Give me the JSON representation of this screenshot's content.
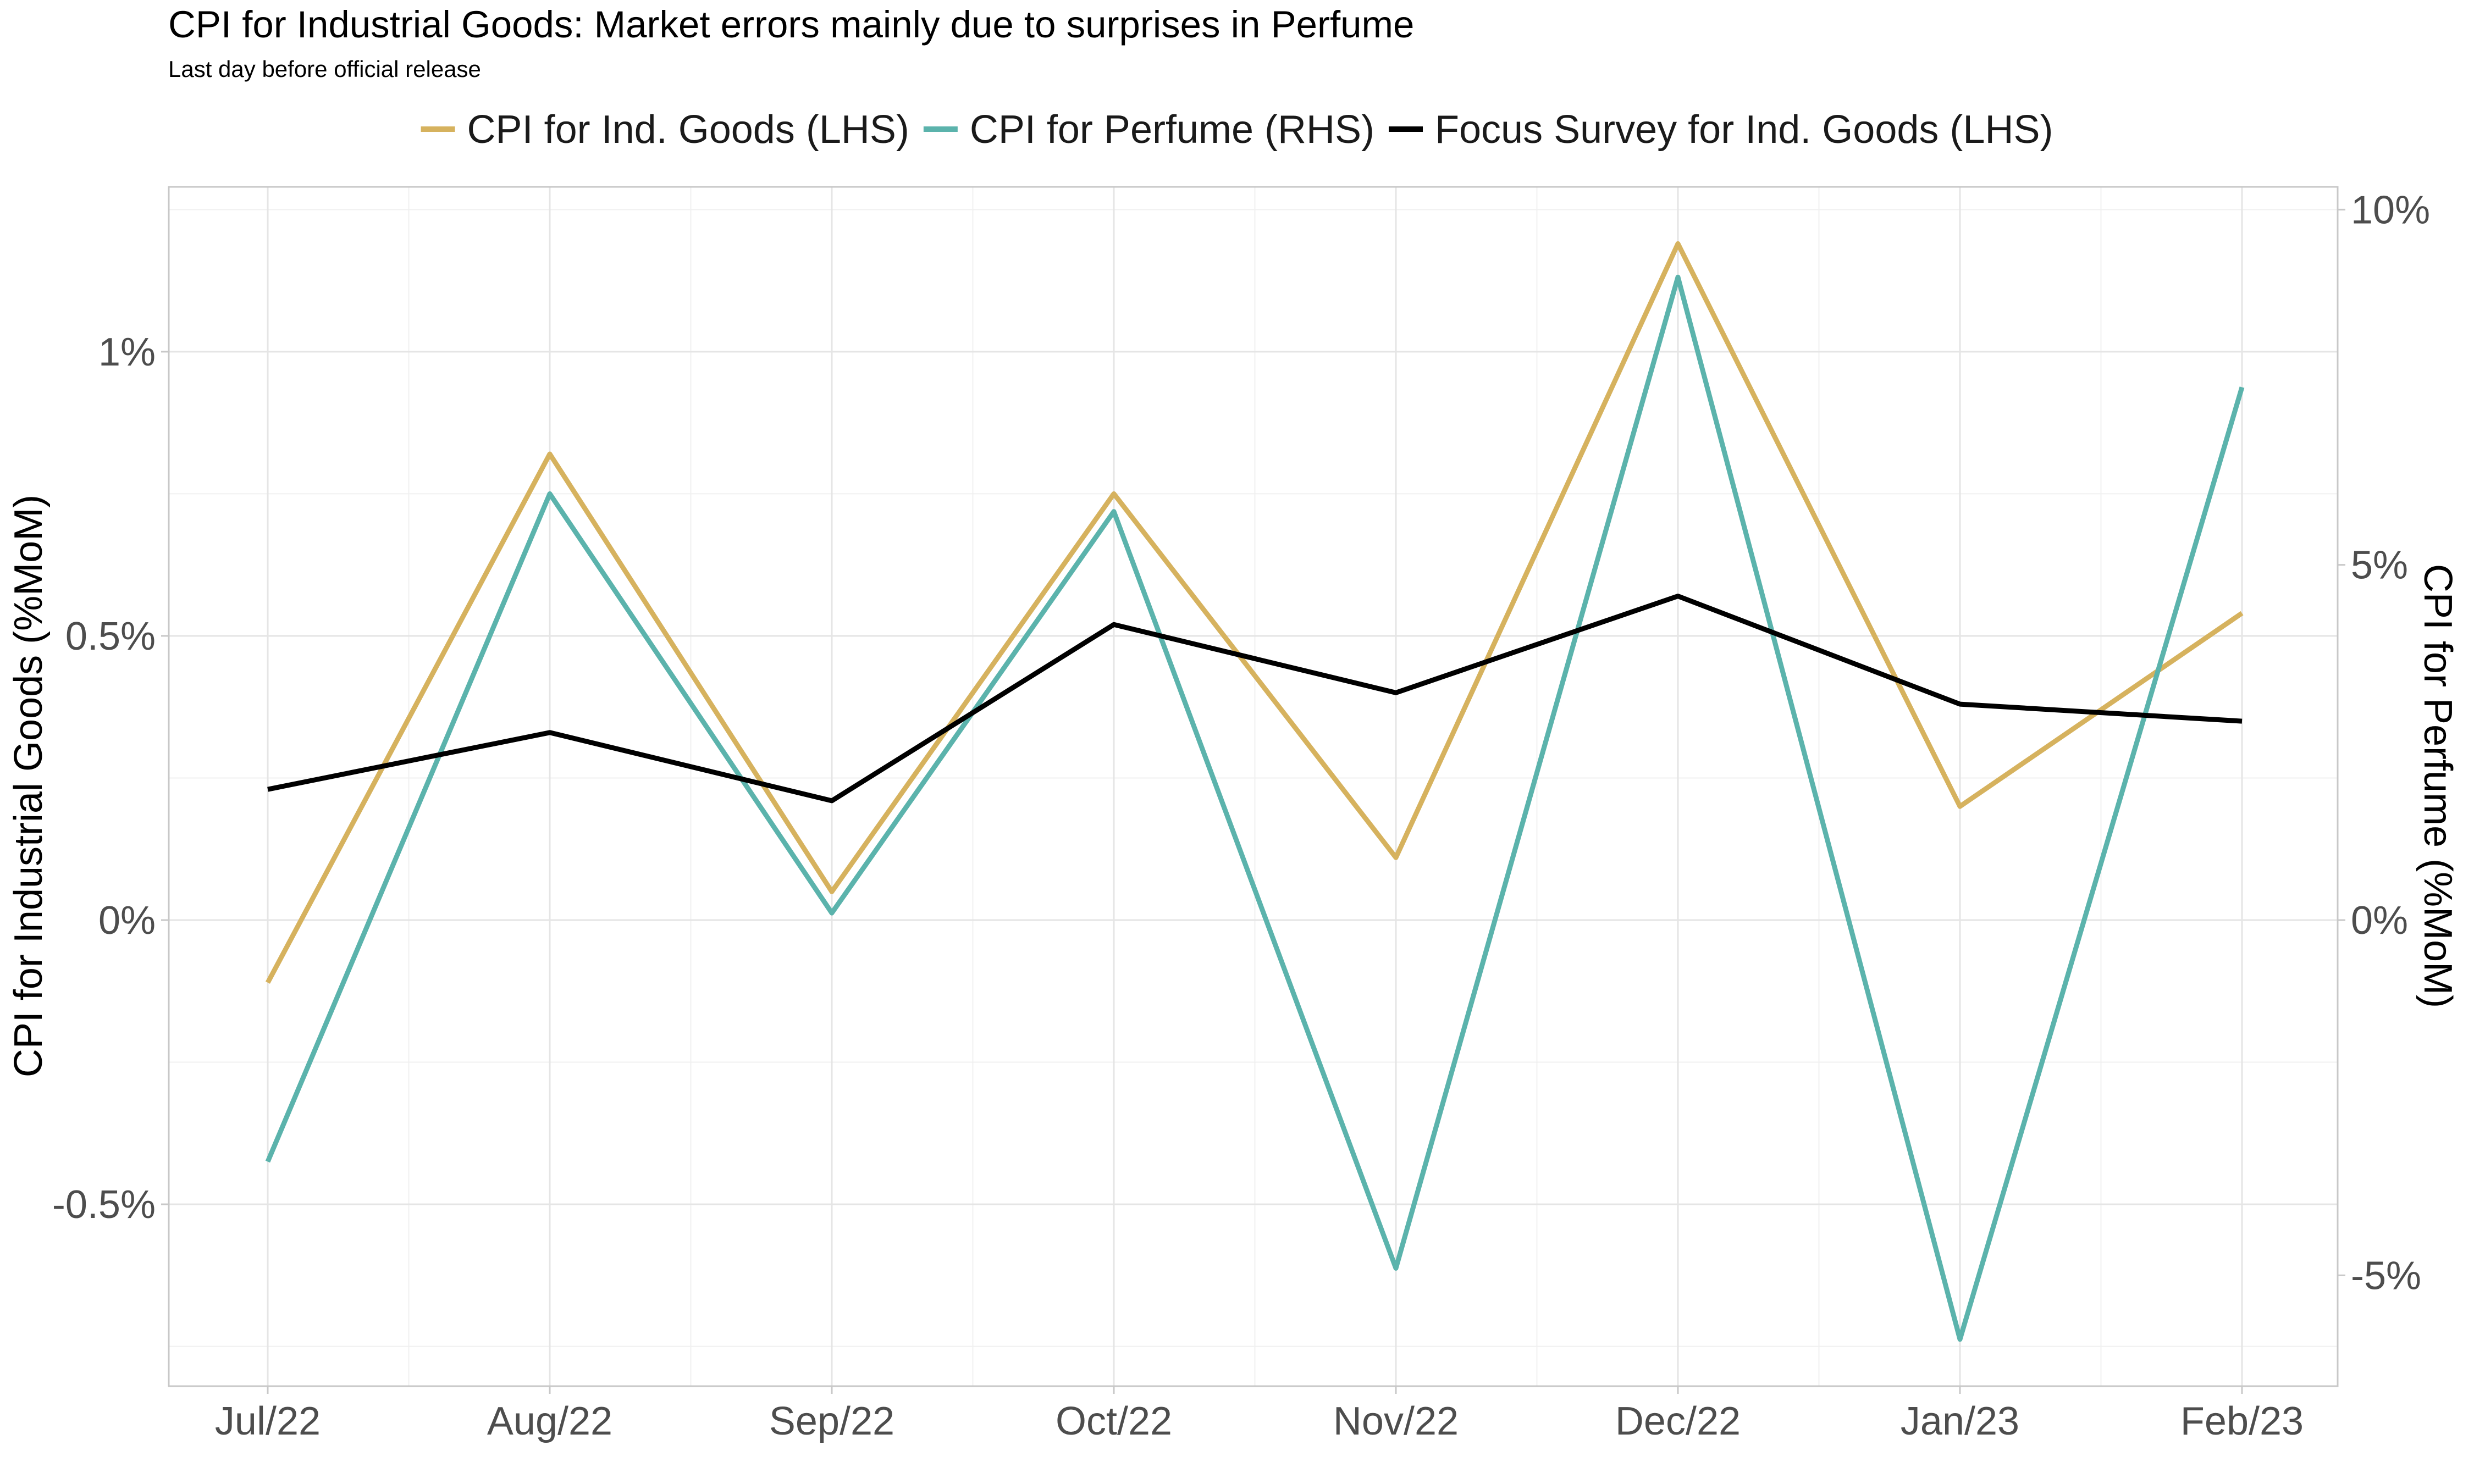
{
  "chart_data": {
    "type": "line",
    "title": "CPI for Industrial Goods: Market errors mainly due to surprises in Perfume",
    "subtitle": "Last day before official release",
    "ylabel_left": "CPI for Industrial Goods (%MoM)",
    "ylabel_right": "CPI for Perfume (%MoM)",
    "categories": [
      "Jul/22",
      "Aug/22",
      "Sep/22",
      "Oct/22",
      "Nov/22",
      "Dec/22",
      "Jan/23",
      "Feb/23"
    ],
    "ylim_left": [
      -0.82,
      1.29
    ],
    "ylim_right": [
      -6.56,
      10.32
    ],
    "yticks_left": [
      {
        "value": -0.5,
        "label": "-0.5%"
      },
      {
        "value": 0,
        "label": "0%"
      },
      {
        "value": 0.5,
        "label": "0.5%"
      },
      {
        "value": 1,
        "label": "1%"
      }
    ],
    "yticks_right": [
      {
        "value": -5,
        "label": "-5%"
      },
      {
        "value": 0,
        "label": "0%"
      },
      {
        "value": 5,
        "label": "5%"
      },
      {
        "value": 10,
        "label": "10%"
      }
    ],
    "grid": true,
    "legend_position": "top",
    "series": [
      {
        "name": "CPI for Ind. Goods (LHS)",
        "axis": "left",
        "color": "#D6B25E",
        "values": [
          -0.11,
          0.82,
          0.05,
          0.75,
          0.11,
          1.19,
          0.2,
          0.54
        ]
      },
      {
        "name": "CPI for Perfume (RHS)",
        "axis": "right",
        "color": "#5BB3AC",
        "values": [
          -3.4,
          6.0,
          0.1,
          5.75,
          -4.9,
          9.05,
          -5.9,
          7.5
        ]
      },
      {
        "name": "Focus Survey for Ind. Goods (LHS)",
        "axis": "left",
        "color": "#000000",
        "values": [
          0.23,
          0.33,
          0.21,
          0.52,
          0.4,
          0.57,
          0.38,
          0.35
        ]
      }
    ]
  }
}
